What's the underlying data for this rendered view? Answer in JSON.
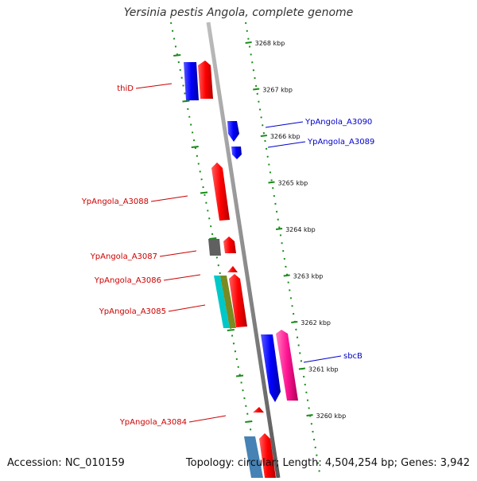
{
  "title": "Yersinia pestis Angola, complete genome",
  "footer": {
    "accession": "Accession: NC_010159",
    "summary": "Topology: circular; Length: 4,504,254 bp; Genes: 3,942"
  },
  "colors": {
    "backbone": "#8f8f8f",
    "ruler": "#1a8c1a",
    "gene_red": "#ff0000",
    "gene_blue": "#0000ff",
    "gene_magenta": "#ff1493",
    "gene_gray": "#606060",
    "gene_cyan": "#00c8c8",
    "gene_olive": "#7a8a20",
    "gene_steelblue": "#4682b4",
    "label_red": "#cc0000",
    "label_blue": "#0000cc"
  },
  "ruler_ticks": [
    {
      "label": "3268 kbp"
    },
    {
      "label": "3267 kbp"
    },
    {
      "label": "3266 kbp"
    },
    {
      "label": "3265 kbp"
    },
    {
      "label": "3264 kbp"
    },
    {
      "label": "3263 kbp"
    },
    {
      "label": "3262 kbp"
    },
    {
      "label": "3261 kbp"
    },
    {
      "label": "3260 kbp"
    }
  ],
  "gene_labels": [
    {
      "text": "thiD",
      "strand": "forward"
    },
    {
      "text": "YpAngola_A3090",
      "strand": "reverse"
    },
    {
      "text": "YpAngola_A3089",
      "strand": "reverse"
    },
    {
      "text": "YpAngola_A3088",
      "strand": "forward"
    },
    {
      "text": "YpAngola_A3087",
      "strand": "forward"
    },
    {
      "text": "YpAngola_A3086",
      "strand": "forward"
    },
    {
      "text": "YpAngola_A3085",
      "strand": "forward"
    },
    {
      "text": "sbcB",
      "strand": "reverse"
    },
    {
      "text": "YpAngola_A3084",
      "strand": "forward"
    }
  ]
}
